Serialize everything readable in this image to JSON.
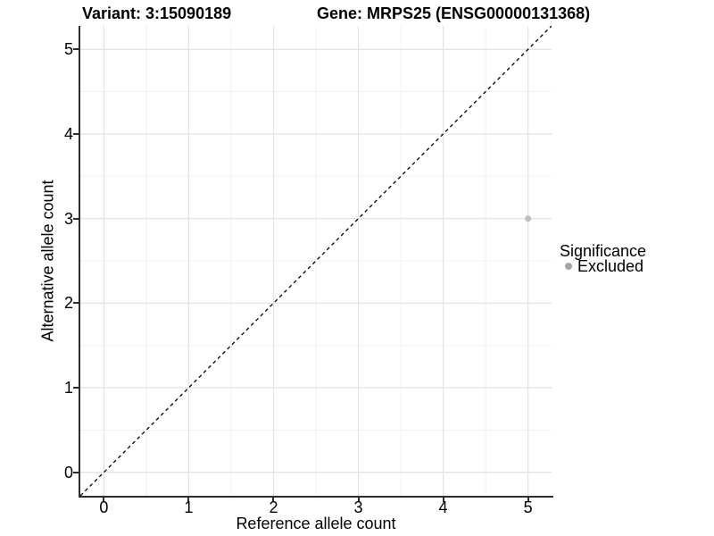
{
  "chart_data": {
    "type": "scatter",
    "title_left": "Variant: 3:15090189",
    "title_right": "Gene: MRPS25 (ENSG00000131368)",
    "xlabel": "Reference allele count",
    "ylabel": "Alternative allele count",
    "xlim": [
      -0.2775,
      5.2775
    ],
    "ylim": [
      -0.2775,
      5.2775
    ],
    "x_ticks": [
      0,
      1,
      2,
      3,
      4,
      5
    ],
    "y_ticks": [
      0,
      1,
      2,
      3,
      4,
      5
    ],
    "x_minor": [
      0.5,
      1.5,
      2.5,
      3.5,
      4.5
    ],
    "y_minor": [
      0.5,
      1.5,
      2.5,
      3.5,
      4.5
    ],
    "grid": true,
    "grid_major_color": "#e3e3e3",
    "grid_minor_color": "#f1f1f1",
    "identity_line": {
      "style": "dashed",
      "color": "#000000",
      "from": [
        -0.2775,
        -0.2775
      ],
      "to": [
        5.2775,
        5.2775
      ]
    },
    "series": [
      {
        "name": "Excluded",
        "color": "#bfbfbf",
        "point_radius": 3.5,
        "points": [
          {
            "x": 5,
            "y": 3
          }
        ]
      }
    ],
    "legend": {
      "title": "Significance",
      "position": "right",
      "items": [
        {
          "label": "Excluded",
          "swatch_color": "#a6a6a6"
        }
      ]
    }
  }
}
